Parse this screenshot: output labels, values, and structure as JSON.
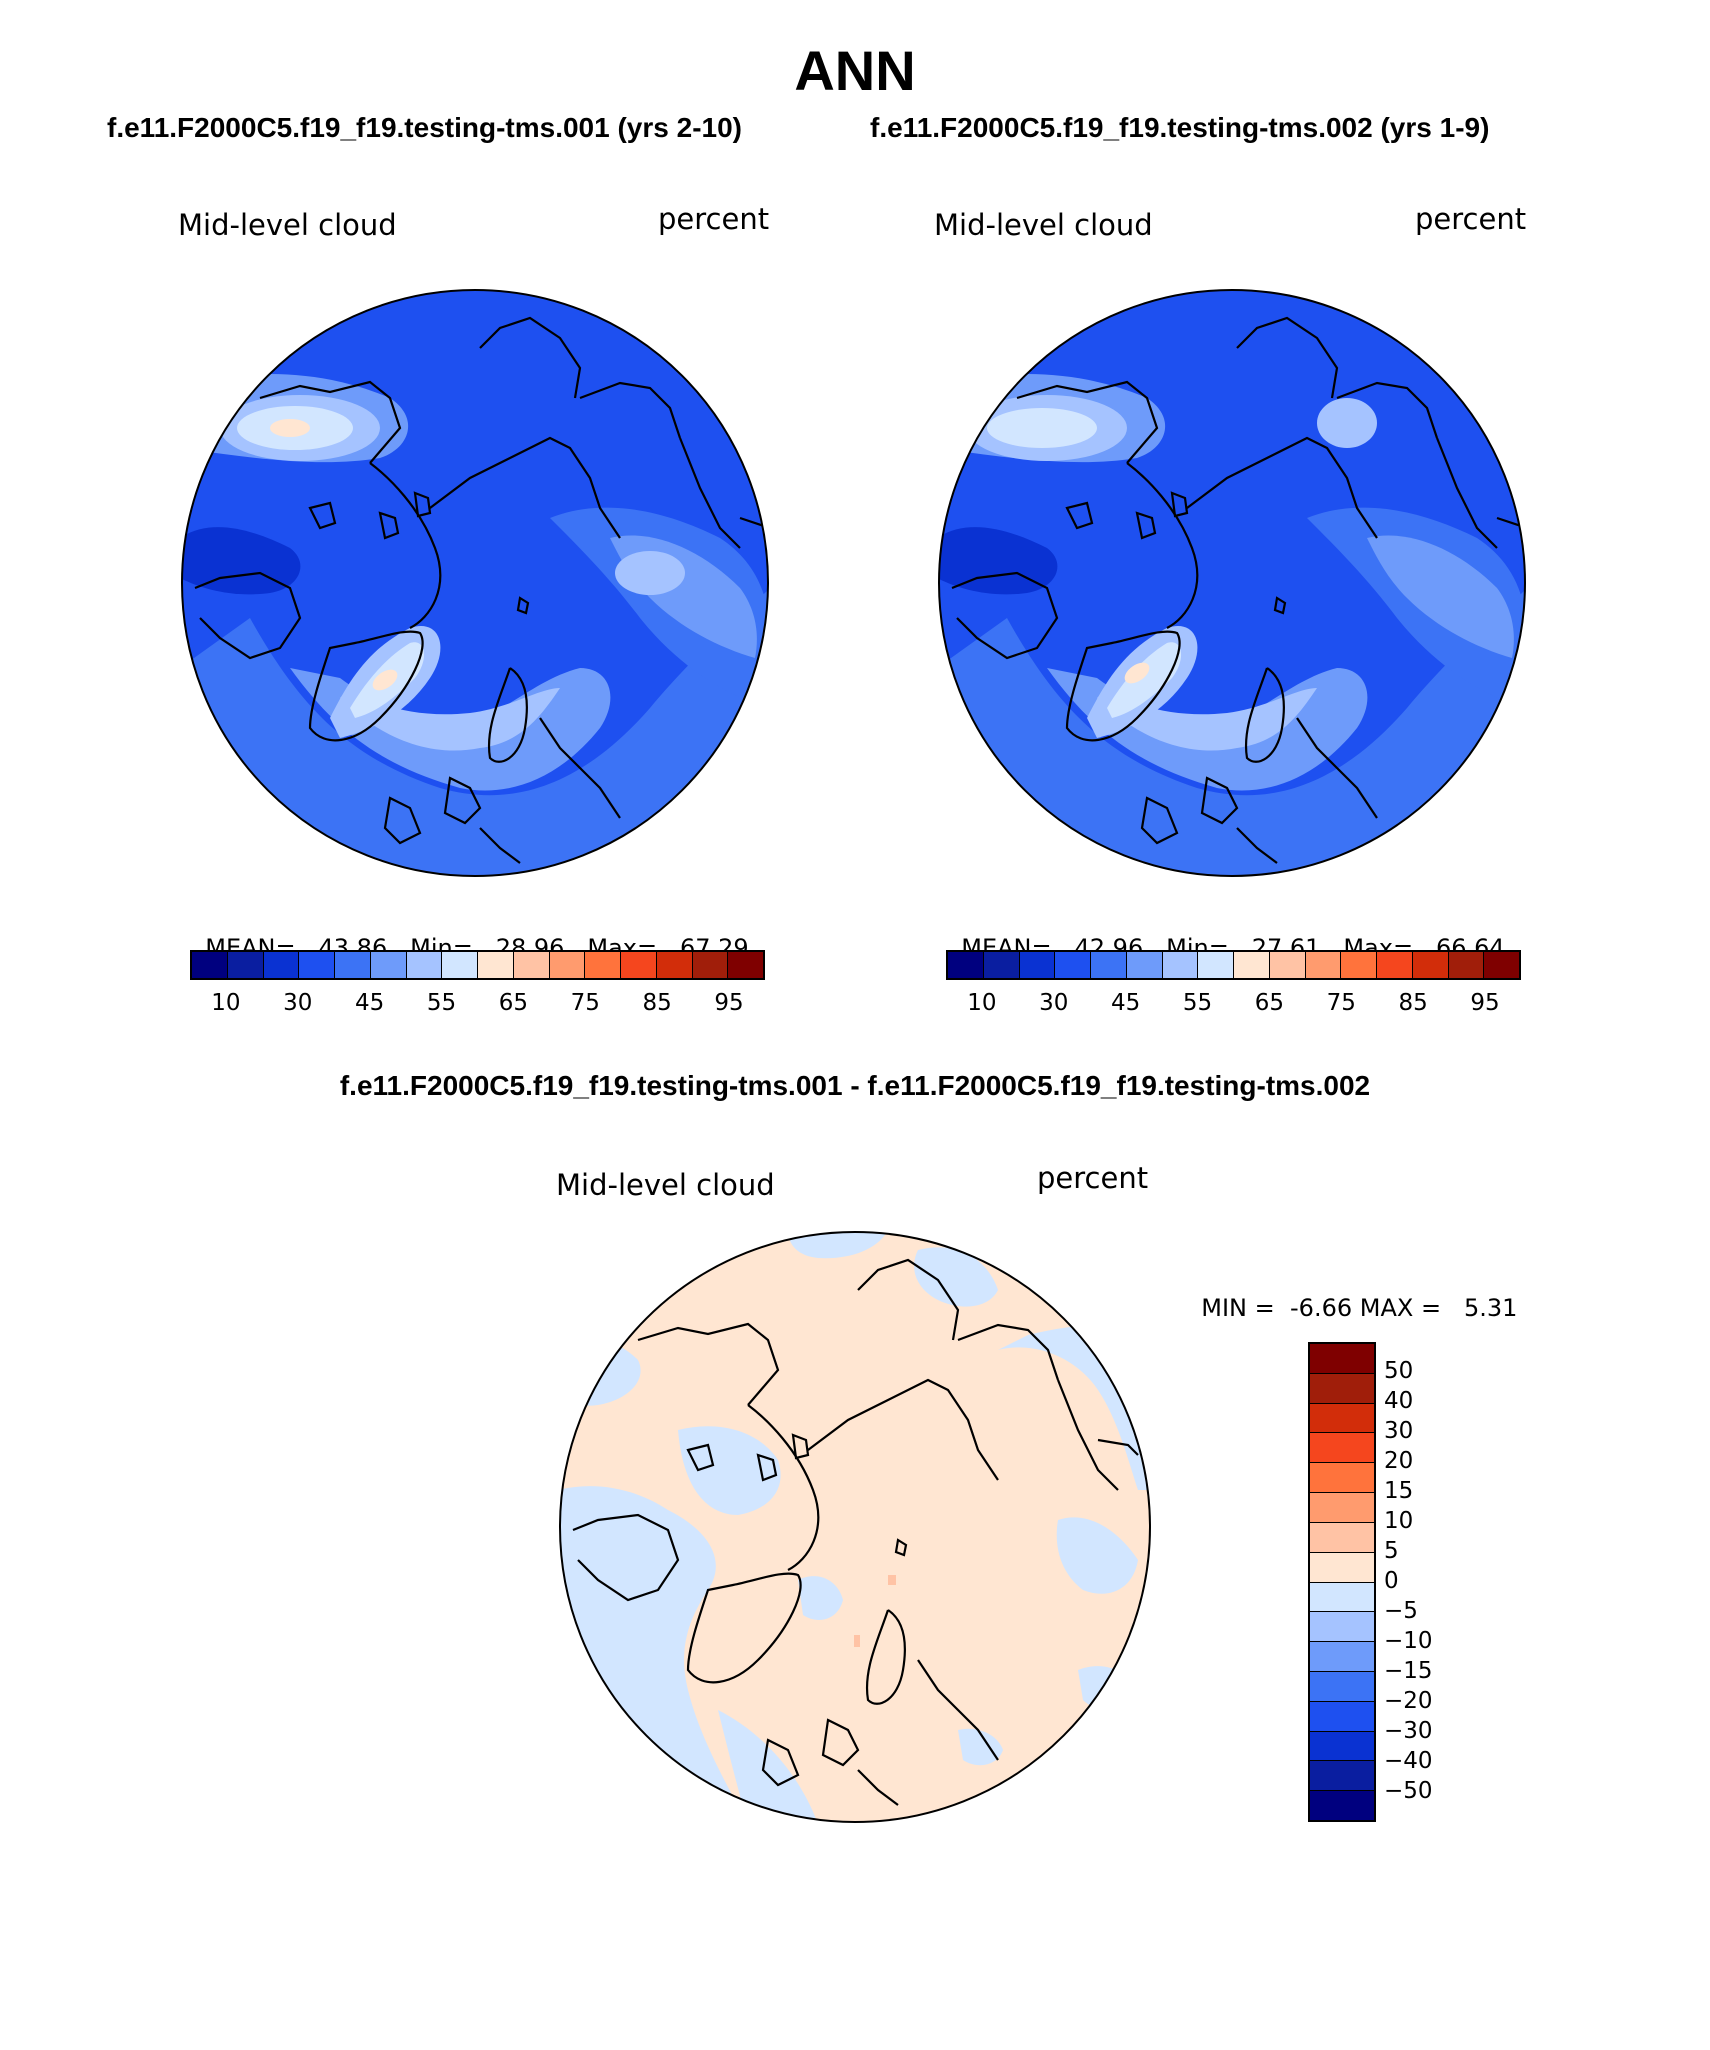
{
  "title": "ANN",
  "case_titles": {
    "left": "f.e11.F2000C5.f19_f19.testing-tms.001 (yrs 2-10)",
    "right": "f.e11.F2000C5.f19_f19.testing-tms.002 (yrs 1-9)"
  },
  "difference_title": "f.e11.F2000C5.f19_f19.testing-tms.001 - f.e11.F2000C5.f19_f19.testing-tms.002",
  "panels": [
    {
      "id": "case1",
      "variable": "Mid-level cloud",
      "units": "percent",
      "projection": "north polar stereographic",
      "stats": {
        "mean_label": "MEAN=",
        "mean": "43.86",
        "min_label": "Min=",
        "min": "28.96",
        "max_label": "Max=",
        "max": "67.29"
      }
    },
    {
      "id": "case2",
      "variable": "Mid-level cloud",
      "units": "percent",
      "projection": "north polar stereographic",
      "stats": {
        "mean_label": "MEAN=",
        "mean": "42.96",
        "min_label": "Min=",
        "min": "27.61",
        "max_label": "Max=",
        "max": "66.64"
      }
    },
    {
      "id": "difference",
      "variable": "Mid-level cloud",
      "units": "percent",
      "projection": "north polar stereographic",
      "stats": {
        "min_label": "MIN =",
        "min": "-6.66",
        "max_label": "MAX =",
        "max": "5.31"
      }
    }
  ],
  "colorbar_abs": {
    "ticks": [
      "10",
      "30",
      "45",
      "55",
      "65",
      "75",
      "85",
      "95"
    ],
    "colors": [
      "#00007f",
      "#0a1ea0",
      "#0a32d2",
      "#1e50f0",
      "#3c73f5",
      "#6e9bfa",
      "#a5c3ff",
      "#d2e6ff",
      "#ffe6d2",
      "#ffc3a5",
      "#ff9b6e",
      "#ff733c",
      "#f5461e",
      "#d22d0a",
      "#a01e0a",
      "#7f0000"
    ]
  },
  "colorbar_diff": {
    "ticks": [
      "50",
      "40",
      "30",
      "20",
      "15",
      "10",
      "5",
      "0",
      "−5",
      "−10",
      "−15",
      "−20",
      "−30",
      "−40",
      "−50"
    ],
    "colors": [
      "#7f0000",
      "#a01e0a",
      "#d22d0a",
      "#f5461e",
      "#ff733c",
      "#ff9b6e",
      "#ffc3a5",
      "#ffe6d2",
      "#d2e6ff",
      "#a5c3ff",
      "#6e9bfa",
      "#3c73f5",
      "#1e50f0",
      "#0a32d2",
      "#0a1ea0",
      "#00007f"
    ]
  }
}
